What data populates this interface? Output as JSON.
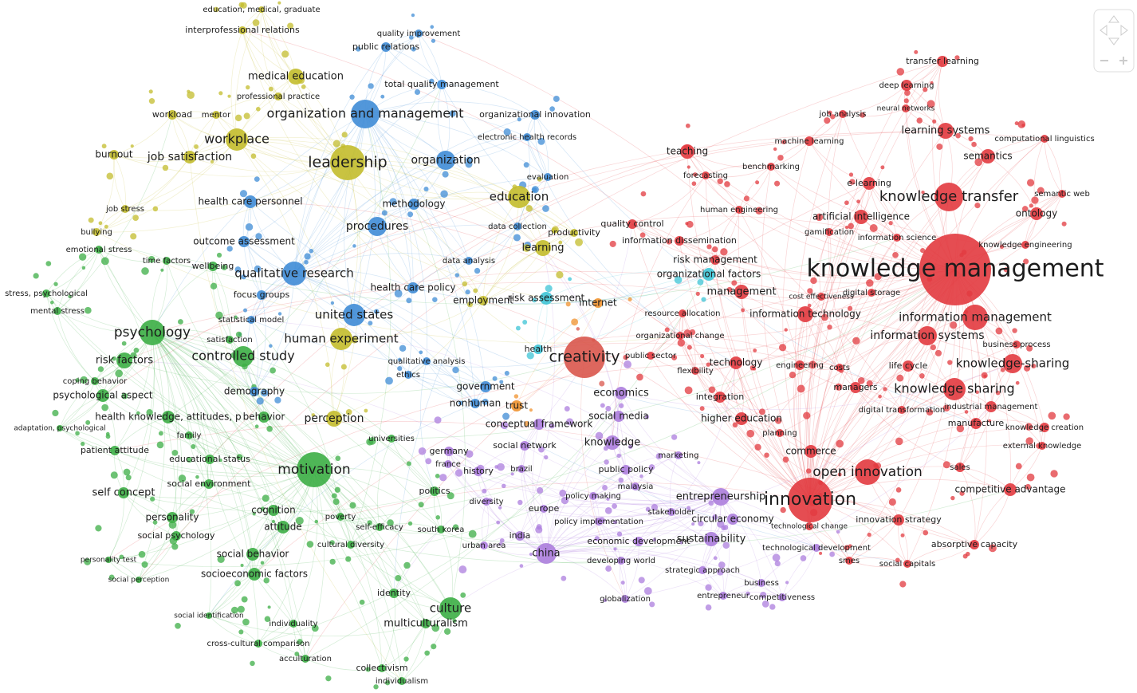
{
  "nodes": [
    {
      "label": "knowledge management",
      "color": "#e23a3f"
    },
    {
      "label": "knowledge transfer",
      "color": "#e23a3f"
    },
    {
      "label": "information management",
      "color": "#e23a3f"
    },
    {
      "label": "knowledge-sharing",
      "color": "#e23a3f"
    },
    {
      "label": "knowledge sharing",
      "color": "#e23a3f"
    },
    {
      "label": "open innovation",
      "color": "#e23a3f"
    },
    {
      "label": "innovation",
      "color": "#e23a3f"
    },
    {
      "label": "information systems",
      "color": "#e23a3f"
    },
    {
      "label": "learning systems",
      "color": "#e23a3f"
    },
    {
      "label": "semantics",
      "color": "#e23a3f"
    },
    {
      "label": "ontology",
      "color": "#e23a3f"
    },
    {
      "label": "artificial intelligence",
      "color": "#e23a3f"
    },
    {
      "label": "e-learning",
      "color": "#e23a3f"
    },
    {
      "label": "teaching",
      "color": "#e23a3f"
    },
    {
      "label": "transfer learning",
      "color": "#e23a3f"
    },
    {
      "label": "deep learning",
      "color": "#e23a3f"
    },
    {
      "label": "machine learning",
      "color": "#e23a3f"
    },
    {
      "label": "competitive advantage",
      "color": "#e23a3f"
    },
    {
      "label": "innovation strategy",
      "color": "#e23a3f"
    },
    {
      "label": "absorptive capacity",
      "color": "#e23a3f"
    },
    {
      "label": "management",
      "color": "#e23a3f"
    },
    {
      "label": "information technology",
      "color": "#e23a3f"
    },
    {
      "label": "technology",
      "color": "#e23a3f"
    },
    {
      "label": "commerce",
      "color": "#e23a3f"
    },
    {
      "label": "higher education",
      "color": "#e23a3f"
    },
    {
      "label": "integration",
      "color": "#e23a3f"
    },
    {
      "label": "life cycle",
      "color": "#e23a3f"
    },
    {
      "label": "managers",
      "color": "#e23a3f"
    },
    {
      "label": "industrial management",
      "color": "#e23a3f"
    },
    {
      "label": "manufacture",
      "color": "#e23a3f"
    },
    {
      "label": "knowledge creation",
      "color": "#e23a3f"
    },
    {
      "label": "external knowledge",
      "color": "#e23a3f"
    },
    {
      "label": "sales",
      "color": "#e23a3f"
    },
    {
      "label": "digital transformation",
      "color": "#e23a3f"
    },
    {
      "label": "engineering",
      "color": "#e23a3f"
    },
    {
      "label": "costs",
      "color": "#e23a3f"
    },
    {
      "label": "planning",
      "color": "#e23a3f"
    },
    {
      "label": "information science",
      "color": "#e23a3f"
    },
    {
      "label": "gamification",
      "color": "#e23a3f"
    },
    {
      "label": "computational linguistics",
      "color": "#e23a3f"
    },
    {
      "label": "semantic web",
      "color": "#e23a3f"
    },
    {
      "label": "knowledge engineering",
      "color": "#e23a3f"
    },
    {
      "label": "neural networks",
      "color": "#e23a3f"
    },
    {
      "label": "job analysis",
      "color": "#e23a3f"
    },
    {
      "label": "benchmarking",
      "color": "#e23a3f"
    },
    {
      "label": "organizational change",
      "color": "#e23a3f"
    },
    {
      "label": "smes",
      "color": "#e23a3f"
    },
    {
      "label": "social capitals",
      "color": "#e23a3f"
    },
    {
      "label": "technological change",
      "color": "#e23a3f"
    },
    {
      "label": "business process",
      "color": "#e23a3f"
    },
    {
      "label": "creativity",
      "color": "#d9574c"
    },
    {
      "label": "risk management",
      "color": "#e23a3f"
    },
    {
      "label": "human engineering",
      "color": "#e23a3f"
    },
    {
      "label": "quality control",
      "color": "#e23a3f"
    },
    {
      "label": "information dissemination",
      "color": "#e23a3f"
    },
    {
      "label": "resource allocation",
      "color": "#e23a3f"
    },
    {
      "label": "public sector",
      "color": "#e23a3f"
    },
    {
      "label": "flexibility",
      "color": "#e23a3f"
    },
    {
      "label": "cost effectiveness",
      "color": "#e23a3f"
    },
    {
      "label": "digital storage",
      "color": "#e23a3f"
    },
    {
      "label": "forecasting",
      "color": "#e23a3f"
    },
    {
      "label": "entrepreneurship",
      "color": "#ac7ddd"
    },
    {
      "label": "sustainability",
      "color": "#ac7ddd"
    },
    {
      "label": "circular economy",
      "color": "#ac7ddd"
    },
    {
      "label": "economics",
      "color": "#ac7ddd"
    },
    {
      "label": "social media",
      "color": "#ac7ddd"
    },
    {
      "label": "knowledge",
      "color": "#ac7ddd"
    },
    {
      "label": "china",
      "color": "#ac7ddd"
    },
    {
      "label": "public policy",
      "color": "#ac7ddd"
    },
    {
      "label": "economic development",
      "color": "#ac7ddd"
    },
    {
      "label": "strategic approach",
      "color": "#ac7ddd"
    },
    {
      "label": "entrepreneur",
      "color": "#ac7ddd"
    },
    {
      "label": "competitiveness",
      "color": "#ac7ddd"
    },
    {
      "label": "globalization",
      "color": "#ac7ddd"
    },
    {
      "label": "developing world",
      "color": "#ac7ddd"
    },
    {
      "label": "malaysia",
      "color": "#ac7ddd"
    },
    {
      "label": "policy making",
      "color": "#ac7ddd"
    },
    {
      "label": "stakeholder",
      "color": "#ac7ddd"
    },
    {
      "label": "policy implementation",
      "color": "#ac7ddd"
    },
    {
      "label": "technological development",
      "color": "#ac7ddd"
    },
    {
      "label": "marketing",
      "color": "#ac7ddd"
    },
    {
      "label": "europe",
      "color": "#ac7ddd"
    },
    {
      "label": "india",
      "color": "#ac7ddd"
    },
    {
      "label": "urban area",
      "color": "#ac7ddd"
    },
    {
      "label": "history",
      "color": "#ac7ddd"
    },
    {
      "label": "germany",
      "color": "#ac7ddd"
    },
    {
      "label": "france",
      "color": "#ac7ddd"
    },
    {
      "label": "brazil",
      "color": "#ac7ddd"
    },
    {
      "label": "social network",
      "color": "#ac7ddd"
    },
    {
      "label": "conceptual framework",
      "color": "#ac7ddd"
    },
    {
      "label": "diversity",
      "color": "#ac7ddd"
    },
    {
      "label": "business",
      "color": "#ac7ddd"
    },
    {
      "label": "trust",
      "color": "#f0922e"
    },
    {
      "label": "internet",
      "color": "#f0922e"
    },
    {
      "label": "risk assessment",
      "color": "#3ec4d6"
    },
    {
      "label": "organizational factors",
      "color": "#3ec4d6"
    },
    {
      "label": "health",
      "color": "#3ec4d6"
    },
    {
      "label": "organization and management",
      "color": "#3f8cd6"
    },
    {
      "label": "organization",
      "color": "#3f8cd6"
    },
    {
      "label": "leadership",
      "color": "#c3bc2c"
    },
    {
      "label": "procedures",
      "color": "#3f8cd6"
    },
    {
      "label": "qualitative research",
      "color": "#3f8cd6"
    },
    {
      "label": "united states",
      "color": "#3f8cd6"
    },
    {
      "label": "methodology",
      "color": "#3f8cd6"
    },
    {
      "label": "health care personnel",
      "color": "#3f8cd6"
    },
    {
      "label": "outcome assessment",
      "color": "#3f8cd6"
    },
    {
      "label": "government",
      "color": "#3f8cd6"
    },
    {
      "label": "nonhuman",
      "color": "#3f8cd6"
    },
    {
      "label": "quality improvement",
      "color": "#3f8cd6"
    },
    {
      "label": "public relations",
      "color": "#3f8cd6"
    },
    {
      "label": "total quality management",
      "color": "#3f8cd6"
    },
    {
      "label": "organizational innovation",
      "color": "#3f8cd6"
    },
    {
      "label": "electronic health records",
      "color": "#3f8cd6"
    },
    {
      "label": "focus groups",
      "color": "#3f8cd6"
    },
    {
      "label": "health care policy",
      "color": "#3f8cd6"
    },
    {
      "label": "data collection",
      "color": "#3f8cd6"
    },
    {
      "label": "statistical model",
      "color": "#3f8cd6"
    },
    {
      "label": "qualitative analysis",
      "color": "#3f8cd6"
    },
    {
      "label": "ethics",
      "color": "#3f8cd6"
    },
    {
      "label": "demography",
      "color": "#3f8cd6"
    },
    {
      "label": "evaluation",
      "color": "#3f8cd6"
    },
    {
      "label": "data analysis",
      "color": "#3f8cd6"
    },
    {
      "label": "workplace",
      "color": "#c3bc2c"
    },
    {
      "label": "medical education",
      "color": "#c3bc2c"
    },
    {
      "label": "education",
      "color": "#c3bc2c"
    },
    {
      "label": "human experiment",
      "color": "#c3bc2c"
    },
    {
      "label": "perception",
      "color": "#c3bc2c"
    },
    {
      "label": "learning",
      "color": "#c3bc2c"
    },
    {
      "label": "job satisfaction",
      "color": "#c3bc2c"
    },
    {
      "label": "burnout",
      "color": "#c3bc2c"
    },
    {
      "label": "workload",
      "color": "#c3bc2c"
    },
    {
      "label": "interprofessional relations",
      "color": "#c3bc2c"
    },
    {
      "label": "education, medical, graduate",
      "color": "#c3bc2c"
    },
    {
      "label": "employment",
      "color": "#c3bc2c"
    },
    {
      "label": "productivity",
      "color": "#c3bc2c"
    },
    {
      "label": "job stress",
      "color": "#c3bc2c"
    },
    {
      "label": "bullying",
      "color": "#c3bc2c"
    },
    {
      "label": "mentor",
      "color": "#c3bc2c"
    },
    {
      "label": "professional practice",
      "color": "#c3bc2c"
    },
    {
      "label": "psychology",
      "color": "#3cae45"
    },
    {
      "label": "controlled study",
      "color": "#3cae45"
    },
    {
      "label": "motivation",
      "color": "#3cae45"
    },
    {
      "label": "culture",
      "color": "#3cae45"
    },
    {
      "label": "risk factors",
      "color": "#3cae45"
    },
    {
      "label": "psychological aspect",
      "color": "#3cae45"
    },
    {
      "label": "health knowledge, attitudes, p",
      "color": "#3cae45"
    },
    {
      "label": "behavior",
      "color": "#3cae45"
    },
    {
      "label": "self concept",
      "color": "#3cae45"
    },
    {
      "label": "personality",
      "color": "#3cae45"
    },
    {
      "label": "social psychology",
      "color": "#3cae45"
    },
    {
      "label": "social behavior",
      "color": "#3cae45"
    },
    {
      "label": "socioeconomic factors",
      "color": "#3cae45"
    },
    {
      "label": "attitude",
      "color": "#3cae45"
    },
    {
      "label": "cognition",
      "color": "#3cae45"
    },
    {
      "label": "multiculturalism",
      "color": "#3cae45"
    },
    {
      "label": "collectivism",
      "color": "#3cae45"
    },
    {
      "label": "individualism",
      "color": "#3cae45"
    },
    {
      "label": "acculturation",
      "color": "#3cae45"
    },
    {
      "label": "cross-cultural comparison",
      "color": "#3cae45"
    },
    {
      "label": "individuality",
      "color": "#3cae45"
    },
    {
      "label": "identity",
      "color": "#3cae45"
    },
    {
      "label": "stress, psychological",
      "color": "#3cae45"
    },
    {
      "label": "mental stress",
      "color": "#3cae45"
    },
    {
      "label": "coping behavior",
      "color": "#3cae45"
    },
    {
      "label": "adaptation, psychological",
      "color": "#3cae45"
    },
    {
      "label": "patient attitude",
      "color": "#3cae45"
    },
    {
      "label": "educational status",
      "color": "#3cae45"
    },
    {
      "label": "social environment",
      "color": "#3cae45"
    },
    {
      "label": "personality test",
      "color": "#3cae45"
    },
    {
      "label": "social perception",
      "color": "#3cae45"
    },
    {
      "label": "social identification",
      "color": "#3cae45"
    },
    {
      "label": "family",
      "color": "#3cae45"
    },
    {
      "label": "self-efficacy",
      "color": "#3cae45"
    },
    {
      "label": "cultural diversity",
      "color": "#3cae45"
    },
    {
      "label": "wellbeing",
      "color": "#3cae45"
    },
    {
      "label": "satisfaction",
      "color": "#3cae45"
    },
    {
      "label": "emotional stress",
      "color": "#3cae45"
    },
    {
      "label": "time factors",
      "color": "#3cae45"
    },
    {
      "label": "poverty",
      "color": "#3cae45"
    },
    {
      "label": "universities",
      "color": "#3cae45"
    },
    {
      "label": "politics",
      "color": "#3cae45"
    },
    {
      "label": "south korea",
      "color": "#3cae45"
    }
  ]
}
